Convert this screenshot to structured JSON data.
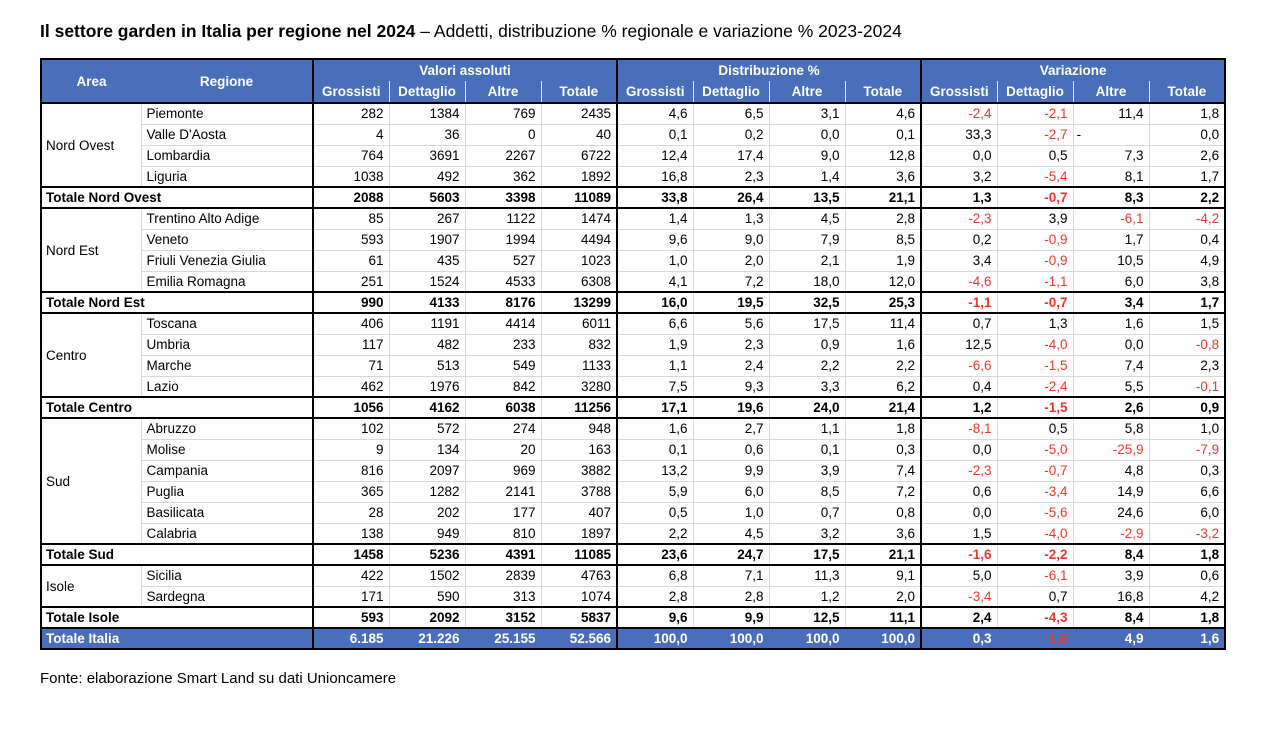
{
  "title": {
    "bold": "Il settore garden in Italia per regione nel 2024",
    "rest": " – Addetti, distribuzione % regionale e variazione % 2023-2024"
  },
  "footer": {
    "text": "Fonte: elaborazione Smart Land su dati Unioncamere"
  },
  "colors": {
    "header_bg": "#4a6fba",
    "header_text": "#ffffff",
    "negative": "#e8382c",
    "grid_light": "#d8d8d8",
    "border_dark": "#000000"
  },
  "table": {
    "area_header": "Area",
    "regione_header": "Regione",
    "groups_header": [
      {
        "label": "Valori assoluti",
        "cols": [
          "Grossisti",
          "Dettaglio",
          "Altre",
          "Totale"
        ]
      },
      {
        "label": "Distribuzione %",
        "cols": [
          "Grossisti",
          "Dettaglio",
          "Altre",
          "Totale"
        ]
      },
      {
        "label": "Variazione",
        "cols": [
          "Grossisti",
          "Dettaglio",
          "Altre",
          "Totale"
        ]
      }
    ],
    "area_groups": [
      {
        "area": "Nord Ovest",
        "rows": [
          {
            "regione": "Piemonte",
            "valori": [
              "282",
              "1384",
              "769",
              "2435"
            ],
            "distribuzione": [
              "4,6",
              "6,5",
              "3,1",
              "4,6"
            ],
            "variazione": [
              "-2,4",
              "-2,1",
              "11,4",
              "1,8"
            ]
          },
          {
            "regione": "Valle D'Aosta",
            "valori": [
              "4",
              "36",
              "0",
              "40"
            ],
            "distribuzione": [
              "0,1",
              "0,2",
              "0,0",
              "0,1"
            ],
            "variazione": [
              "33,3",
              "-2,7",
              "-",
              "0,0"
            ]
          },
          {
            "regione": "Lombardia",
            "valori": [
              "764",
              "3691",
              "2267",
              "6722"
            ],
            "distribuzione": [
              "12,4",
              "17,4",
              "9,0",
              "12,8"
            ],
            "variazione": [
              "0,0",
              "0,5",
              "7,3",
              "2,6"
            ]
          },
          {
            "regione": "Liguria",
            "valori": [
              "1038",
              "492",
              "362",
              "1892"
            ],
            "distribuzione": [
              "16,8",
              "2,3",
              "1,4",
              "3,6"
            ],
            "variazione": [
              "3,2",
              "-5,4",
              "8,1",
              "1,7"
            ]
          }
        ],
        "total": {
          "label": "Totale Nord Ovest",
          "valori": [
            "2088",
            "5603",
            "3398",
            "11089"
          ],
          "distribuzione": [
            "33,8",
            "26,4",
            "13,5",
            "21,1"
          ],
          "variazione": [
            "1,3",
            "-0,7",
            "8,3",
            "2,2"
          ]
        }
      },
      {
        "area": "Nord Est",
        "rows": [
          {
            "regione": "Trentino Alto Adige",
            "valori": [
              "85",
              "267",
              "1122",
              "1474"
            ],
            "distribuzione": [
              "1,4",
              "1,3",
              "4,5",
              "2,8"
            ],
            "variazione": [
              "-2,3",
              "3,9",
              "-6,1",
              "-4,2"
            ]
          },
          {
            "regione": "Veneto",
            "valori": [
              "593",
              "1907",
              "1994",
              "4494"
            ],
            "distribuzione": [
              "9,6",
              "9,0",
              "7,9",
              "8,5"
            ],
            "variazione": [
              "0,2",
              "-0,9",
              "1,7",
              "0,4"
            ]
          },
          {
            "regione": "Friuli Venezia Giulia",
            "valori": [
              "61",
              "435",
              "527",
              "1023"
            ],
            "distribuzione": [
              "1,0",
              "2,0",
              "2,1",
              "1,9"
            ],
            "variazione": [
              "3,4",
              "-0,9",
              "10,5",
              "4,9"
            ]
          },
          {
            "regione": "Emilia Romagna",
            "valori": [
              "251",
              "1524",
              "4533",
              "6308"
            ],
            "distribuzione": [
              "4,1",
              "7,2",
              "18,0",
              "12,0"
            ],
            "variazione": [
              "-4,6",
              "-1,1",
              "6,0",
              "3,8"
            ]
          }
        ],
        "total": {
          "label": "Totale Nord Est",
          "valori": [
            "990",
            "4133",
            "8176",
            "13299"
          ],
          "distribuzione": [
            "16,0",
            "19,5",
            "32,5",
            "25,3"
          ],
          "variazione": [
            "-1,1",
            "-0,7",
            "3,4",
            "1,7"
          ]
        }
      },
      {
        "area": "Centro",
        "rows": [
          {
            "regione": "Toscana",
            "valori": [
              "406",
              "1191",
              "4414",
              "6011"
            ],
            "distribuzione": [
              "6,6",
              "5,6",
              "17,5",
              "11,4"
            ],
            "variazione": [
              "0,7",
              "1,3",
              "1,6",
              "1,5"
            ]
          },
          {
            "regione": "Umbria",
            "valori": [
              "117",
              "482",
              "233",
              "832"
            ],
            "distribuzione": [
              "1,9",
              "2,3",
              "0,9",
              "1,6"
            ],
            "variazione": [
              "12,5",
              "-4,0",
              "0,0",
              "-0,8"
            ]
          },
          {
            "regione": "Marche",
            "valori": [
              "71",
              "513",
              "549",
              "1133"
            ],
            "distribuzione": [
              "1,1",
              "2,4",
              "2,2",
              "2,2"
            ],
            "variazione": [
              "-6,6",
              "-1,5",
              "7,4",
              "2,3"
            ]
          },
          {
            "regione": "Lazio",
            "valori": [
              "462",
              "1976",
              "842",
              "3280"
            ],
            "distribuzione": [
              "7,5",
              "9,3",
              "3,3",
              "6,2"
            ],
            "variazione": [
              "0,4",
              "-2,4",
              "5,5",
              "-0,1"
            ]
          }
        ],
        "total": {
          "label": "Totale Centro",
          "valori": [
            "1056",
            "4162",
            "6038",
            "11256"
          ],
          "distribuzione": [
            "17,1",
            "19,6",
            "24,0",
            "21,4"
          ],
          "variazione": [
            "1,2",
            "-1,5",
            "2,6",
            "0,9"
          ]
        }
      },
      {
        "area": "Sud",
        "rows": [
          {
            "regione": "Abruzzo",
            "valori": [
              "102",
              "572",
              "274",
              "948"
            ],
            "distribuzione": [
              "1,6",
              "2,7",
              "1,1",
              "1,8"
            ],
            "variazione": [
              "-8,1",
              "0,5",
              "5,8",
              "1,0"
            ]
          },
          {
            "regione": "Molise",
            "valori": [
              "9",
              "134",
              "20",
              "163"
            ],
            "distribuzione": [
              "0,1",
              "0,6",
              "0,1",
              "0,3"
            ],
            "variazione": [
              "0,0",
              "-5,0",
              "-25,9",
              "-7,9"
            ]
          },
          {
            "regione": "Campania",
            "valori": [
              "816",
              "2097",
              "969",
              "3882"
            ],
            "distribuzione": [
              "13,2",
              "9,9",
              "3,9",
              "7,4"
            ],
            "variazione": [
              "-2,3",
              "-0,7",
              "4,8",
              "0,3"
            ]
          },
          {
            "regione": "Puglia",
            "valori": [
              "365",
              "1282",
              "2141",
              "3788"
            ],
            "distribuzione": [
              "5,9",
              "6,0",
              "8,5",
              "7,2"
            ],
            "variazione": [
              "0,6",
              "-3,4",
              "14,9",
              "6,6"
            ]
          },
          {
            "regione": "Basilicata",
            "valori": [
              "28",
              "202",
              "177",
              "407"
            ],
            "distribuzione": [
              "0,5",
              "1,0",
              "0,7",
              "0,8"
            ],
            "variazione": [
              "0,0",
              "-5,6",
              "24,6",
              "6,0"
            ]
          },
          {
            "regione": "Calabria",
            "valori": [
              "138",
              "949",
              "810",
              "1897"
            ],
            "distribuzione": [
              "2,2",
              "4,5",
              "3,2",
              "3,6"
            ],
            "variazione": [
              "1,5",
              "-4,0",
              "-2,9",
              "-3,2"
            ]
          }
        ],
        "total": {
          "label": "Totale Sud",
          "valori": [
            "1458",
            "5236",
            "4391",
            "11085"
          ],
          "distribuzione": [
            "23,6",
            "24,7",
            "17,5",
            "21,1"
          ],
          "variazione": [
            "-1,6",
            "-2,2",
            "8,4",
            "1,8"
          ]
        }
      },
      {
        "area": "Isole",
        "rows": [
          {
            "regione": "Sicilia",
            "valori": [
              "422",
              "1502",
              "2839",
              "4763"
            ],
            "distribuzione": [
              "6,8",
              "7,1",
              "11,3",
              "9,1"
            ],
            "variazione": [
              "5,0",
              "-6,1",
              "3,9",
              "0,6"
            ]
          },
          {
            "regione": "Sardegna",
            "valori": [
              "171",
              "590",
              "313",
              "1074"
            ],
            "distribuzione": [
              "2,8",
              "2,8",
              "1,2",
              "2,0"
            ],
            "variazione": [
              "-3,4",
              "0,7",
              "16,8",
              "4,2"
            ]
          }
        ],
        "total": {
          "label": "Totale Isole",
          "valori": [
            "593",
            "2092",
            "3152",
            "5837"
          ],
          "distribuzione": [
            "9,6",
            "9,9",
            "12,5",
            "11,1"
          ],
          "variazione": [
            "2,4",
            "-4,3",
            "8,4",
            "1,8"
          ]
        }
      }
    ],
    "grand_total": {
      "label": "Totale Italia",
      "valori": [
        "6.185",
        "21.226",
        "25.155",
        "52.566"
      ],
      "distribuzione": [
        "100,0",
        "100,0",
        "100,0",
        "100,0"
      ],
      "variazione": [
        "0,3",
        "-1,6",
        "4,9",
        "1,6"
      ]
    }
  }
}
